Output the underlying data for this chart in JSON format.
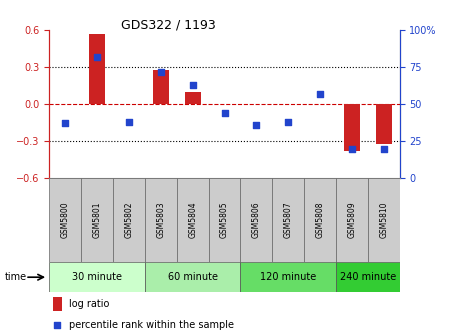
{
  "title": "GDS322 / 1193",
  "samples": [
    "GSM5800",
    "GSM5801",
    "GSM5802",
    "GSM5803",
    "GSM5804",
    "GSM5805",
    "GSM5806",
    "GSM5807",
    "GSM5808",
    "GSM5809",
    "GSM5810"
  ],
  "log_ratio": [
    0.0,
    0.57,
    0.0,
    0.28,
    0.1,
    0.0,
    0.0,
    0.0,
    0.0,
    -0.38,
    -0.32
  ],
  "percentile_rank": [
    37,
    82,
    38,
    72,
    63,
    44,
    36,
    38,
    57,
    20,
    20
  ],
  "ylim_left": [
    -0.6,
    0.6
  ],
  "ylim_right": [
    0,
    100
  ],
  "yticks_left": [
    -0.6,
    -0.3,
    0.0,
    0.3,
    0.6
  ],
  "yticks_right": [
    0,
    25,
    50,
    75,
    100
  ],
  "hlines": [
    0.3,
    -0.3
  ],
  "bar_color": "#cc2222",
  "scatter_color": "#2244cc",
  "zero_line_color": "#cc0000",
  "dotted_line_color": "#000000",
  "sample_box_color": "#cccccc",
  "groups": [
    {
      "label": "30 minute",
      "start": 0,
      "end": 3,
      "color": "#ccffcc"
    },
    {
      "label": "60 minute",
      "start": 3,
      "end": 6,
      "color": "#aaeeaa"
    },
    {
      "label": "120 minute",
      "start": 6,
      "end": 9,
      "color": "#66dd66"
    },
    {
      "label": "240 minute",
      "start": 9,
      "end": 11,
      "color": "#33cc33"
    }
  ],
  "xlabel_time": "time",
  "legend_log": "log ratio",
  "legend_pct": "percentile rank within the sample",
  "bar_width": 0.5
}
